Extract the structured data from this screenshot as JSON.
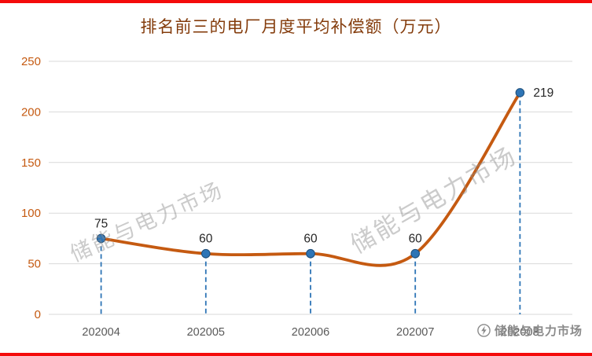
{
  "page": {
    "border_color": "#F40B0B",
    "background": "#FFFFFF"
  },
  "chart_data": {
    "type": "line",
    "title": "排名前三的电厂月度平均补偿额（万元）",
    "categories": [
      "202004",
      "202005",
      "202006",
      "202007",
      "202008"
    ],
    "series": [
      {
        "name": "排名前三的电厂月度平均补偿额",
        "values": [
          75,
          60,
          60,
          60,
          219
        ]
      }
    ],
    "xlabel": "",
    "ylabel": "",
    "ylim": [
      0,
      250
    ],
    "ytick_step": 50,
    "grid": true,
    "smooth": true,
    "legend": "none",
    "line_color": "#C55A11",
    "marker_color": "#2E75B6",
    "marker_edge_color": "#1F4E79",
    "dashed_guide_color": "#2E75B6",
    "grid_color": "#D9D9D9",
    "title_color": "#843C0C",
    "ytick_color": "#C55A11",
    "xtick_color": "#595959",
    "data_label_color": "#262626"
  },
  "watermarks": {
    "diagonal_text": "储能与电力市场",
    "footer_text": "储能与电力市场"
  }
}
